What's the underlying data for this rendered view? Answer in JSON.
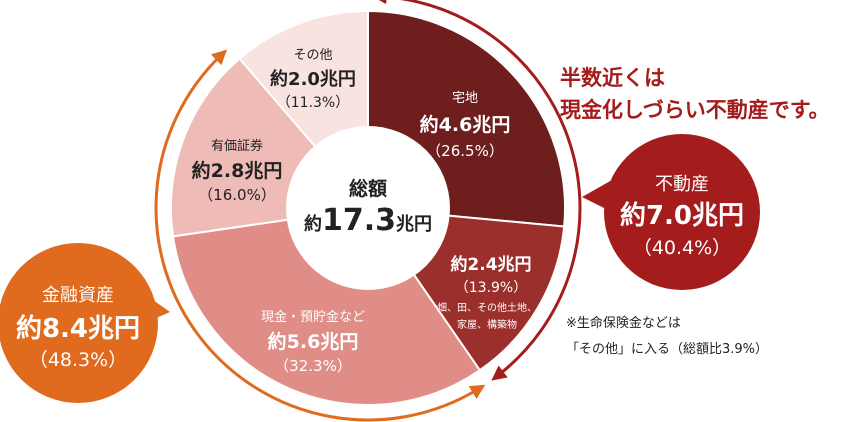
{
  "chart_data": {
    "type": "pie",
    "style": "donut",
    "center": {
      "label": "総額",
      "prefix": "約",
      "value": "17.3",
      "unit": "兆円"
    },
    "slices": [
      {
        "name": "宅地",
        "amount": "約4.6兆円",
        "percent_label": "（26.5%）",
        "value": 26.5,
        "color": "#6e1f1d"
      },
      {
        "name": "畑、田、その他土地、",
        "name2": "家屋、構築物",
        "amount": "約2.4兆円",
        "percent_label": "（13.9%）",
        "value": 13.9,
        "color": "#9b2f2c"
      },
      {
        "name": "現金・預貯金など",
        "amount": "約5.6兆円",
        "percent_label": "（32.3%）",
        "value": 32.3,
        "color": "#e08c87"
      },
      {
        "name": "有価証券",
        "amount": "約2.8兆円",
        "percent_label": "（16.0%）",
        "value": 16.0,
        "color": "#efbbb6"
      },
      {
        "name": "その他",
        "amount": "約2.0兆円",
        "percent_label": "（11.3%）",
        "value": 11.3,
        "color": "#f8e3e0"
      }
    ],
    "groups": [
      {
        "name": "不動産",
        "amount": "約7.0兆円",
        "percent_label": "（40.4%）",
        "value": 40.4,
        "color": "#a51c1c"
      },
      {
        "name": "金融資産",
        "amount": "約8.4兆円",
        "percent_label": "（48.3%）",
        "value": 48.3,
        "color": "#e06a1e"
      }
    ],
    "annotations": {
      "headline_line1": "半数近くは",
      "headline_line2": "現金化しづらい不動産です。",
      "note_line1": "※生命保険金などは",
      "note_line2": "「その他」に入る（総額比3.9%）"
    }
  }
}
